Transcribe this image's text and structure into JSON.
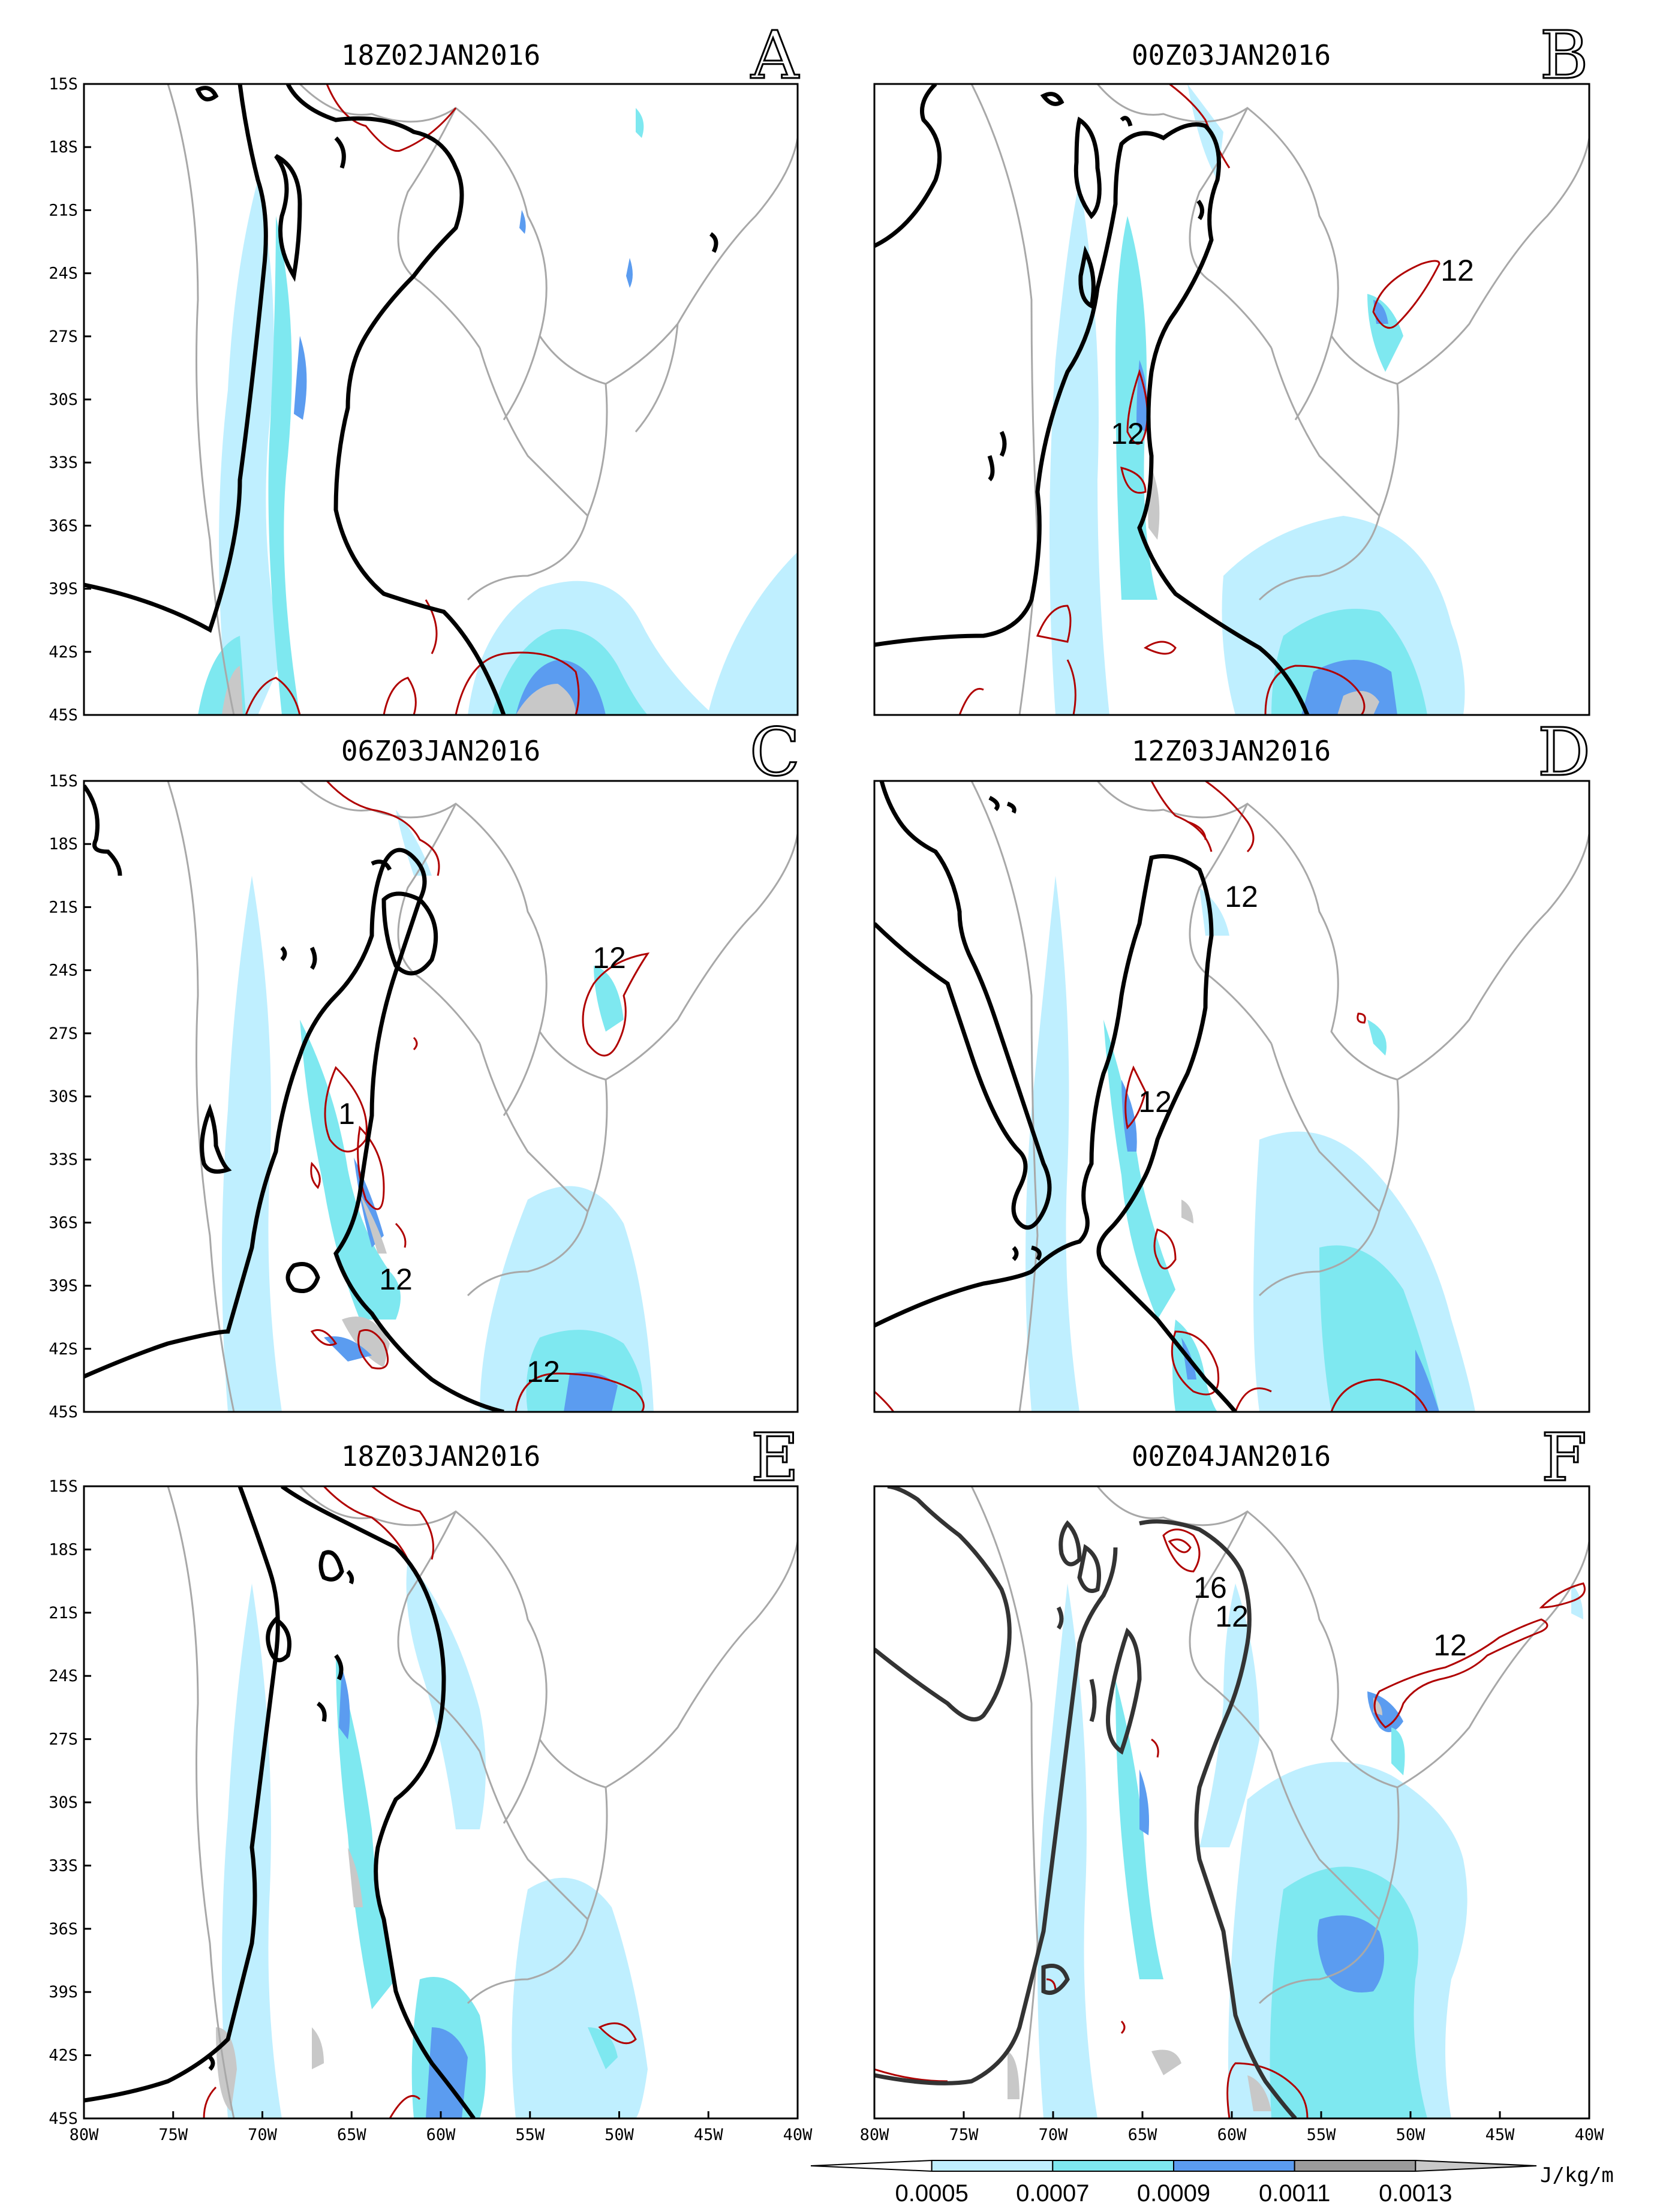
{
  "figure": {
    "panels": [
      {
        "id": "A",
        "title": "18Z02JAN2016",
        "letter": "A",
        "ylabels": [
          "15S",
          "18S",
          "21S",
          "24S",
          "27S",
          "30S",
          "33S",
          "36S",
          "39S",
          "42S",
          "45S"
        ],
        "xlabels": [],
        "contour_labels": []
      },
      {
        "id": "B",
        "title": "00Z03JAN2016",
        "letter": "B",
        "ylabels": [],
        "xlabels": [],
        "contour_labels": [
          "12",
          "12"
        ]
      },
      {
        "id": "C",
        "title": "06Z03JAN2016",
        "letter": "C",
        "ylabels": [
          "15S",
          "18S",
          "21S",
          "24S",
          "27S",
          "30S",
          "33S",
          "36S",
          "39S",
          "42S",
          "45S"
        ],
        "xlabels": [],
        "contour_labels": [
          "12",
          "1",
          "12",
          "12"
        ]
      },
      {
        "id": "D",
        "title": "12Z03JAN2016",
        "letter": "D",
        "ylabels": [],
        "xlabels": [],
        "contour_labels": [
          "12",
          "12"
        ]
      },
      {
        "id": "E",
        "title": "18Z03JAN2016",
        "letter": "E",
        "ylabels": [
          "15S",
          "18S",
          "21S",
          "24S",
          "27S",
          "30S",
          "33S",
          "36S",
          "39S",
          "42S",
          "45S"
        ],
        "xlabels": [
          "80W",
          "75W",
          "70W",
          "65W",
          "60W",
          "55W",
          "50W",
          "45W",
          "40W"
        ],
        "contour_labels": []
      },
      {
        "id": "F",
        "title": "00Z04JAN2016",
        "letter": "F",
        "ylabels": [],
        "xlabels": [
          "80W",
          "75W",
          "70W",
          "65W",
          "60W",
          "55W",
          "50W",
          "45W",
          "40W"
        ],
        "contour_labels": [
          "16",
          "12",
          "12"
        ]
      }
    ],
    "colorbar": {
      "labels": [
        "0.0005",
        "0.0007",
        "0.0009",
        "0.0011",
        "0.0013"
      ],
      "unit": "J/kg/m",
      "colors": [
        "#ffffff",
        "#bfefff",
        "#7ee8f0",
        "#5b9cf0",
        "#9b9b9b",
        "#c8c8c8"
      ]
    },
    "colors": {
      "contour_thick": "#000000",
      "contour_red": "#b00000",
      "coastline": "#a8a8a8"
    }
  }
}
